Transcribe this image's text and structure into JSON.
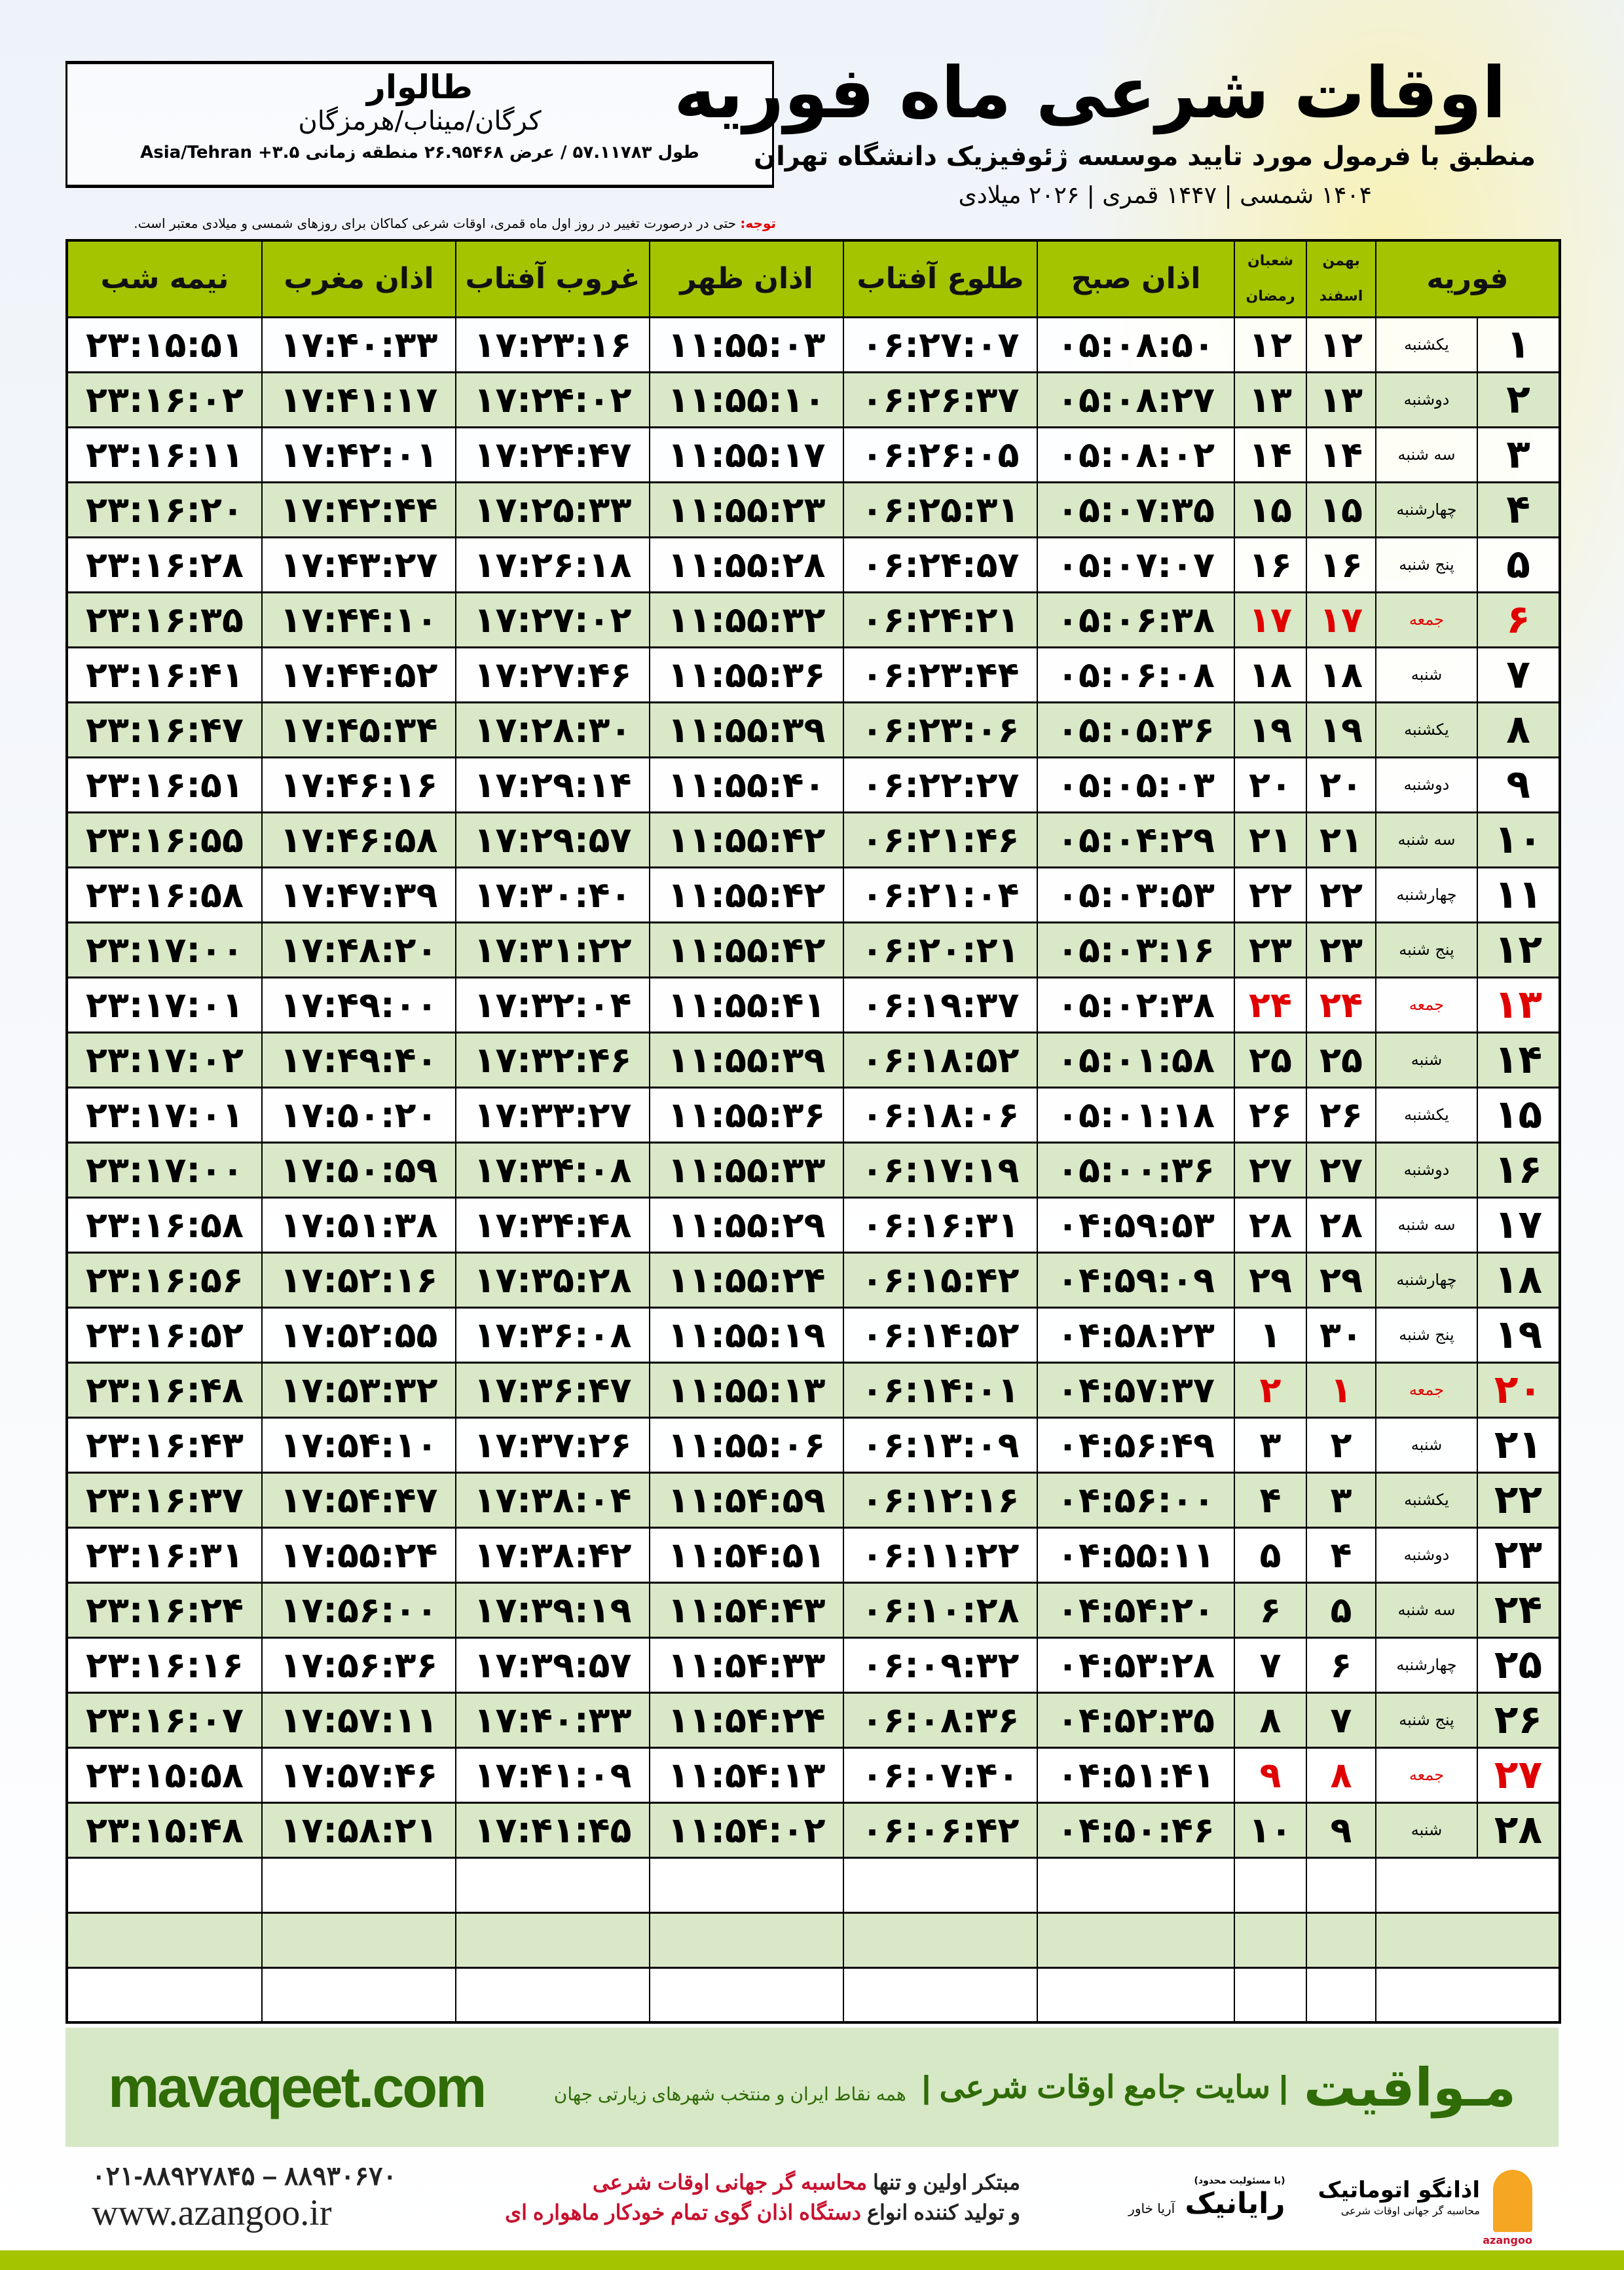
{
  "colors": {
    "header_green": "#a4c400",
    "row_green": "#d9e8c6",
    "friday_red": "#e00000",
    "brand_green": "#2f6b06"
  },
  "info": {
    "city": "طالوار",
    "region": "کرگان/میناب/هرمزگان",
    "coords": "طول ۵۷.۱۱۷۸۳ / عرض ۲۶.۹۵۴۶۸ منطقه زمانی ۳.۵+ Asia/Tehran"
  },
  "header": {
    "title": "اوقات شرعی ماه فوریه",
    "subtitle": "منطبق با فرمول مورد تایید موسسه ژئوفیزیک دانشگاه تهران",
    "dates": "۱۴۰۴ شمسی | ۱۴۴۷ قمری | ۲۰۲۶ میلادی"
  },
  "note": {
    "label": "توجه:",
    "text": " حتی در درصورت تغییر در روز اول ماه قمری، اوقات شرعی کماکان برای روزهای شمسی و میلادی معتبر است."
  },
  "table": {
    "columns": {
      "month": "فوریه",
      "solar_top": "بهمن",
      "solar_bottom": "اسفند",
      "lunar_top": "شعبان",
      "lunar_bottom": "رمضان",
      "fajr": "اذان صبح",
      "sunrise": "طلوع آفتاب",
      "dhuhr": "اذان ظهر",
      "sunset": "غروب آفتاب",
      "maghrib": "اذان مغرب",
      "midnight": "نیمه شب"
    },
    "rows": [
      [
        "۱",
        "یکشنبه",
        "۱۲",
        "۱۲",
        "۰۵:۰۸:۵۰",
        "۰۶:۲۷:۰۷",
        "۱۱:۵۵:۰۳",
        "۱۷:۲۳:۱۶",
        "۱۷:۴۰:۳۳",
        "۲۳:۱۵:۵۱"
      ],
      [
        "۲",
        "دوشنبه",
        "۱۳",
        "۱۳",
        "۰۵:۰۸:۲۷",
        "۰۶:۲۶:۳۷",
        "۱۱:۵۵:۱۰",
        "۱۷:۲۴:۰۲",
        "۱۷:۴۱:۱۷",
        "۲۳:۱۶:۰۲"
      ],
      [
        "۳",
        "سه شنبه",
        "۱۴",
        "۱۴",
        "۰۵:۰۸:۰۲",
        "۰۶:۲۶:۰۵",
        "۱۱:۵۵:۱۷",
        "۱۷:۲۴:۴۷",
        "۱۷:۴۲:۰۱",
        "۲۳:۱۶:۱۱"
      ],
      [
        "۴",
        "چهارشنبه",
        "۱۵",
        "۱۵",
        "۰۵:۰۷:۳۵",
        "۰۶:۲۵:۳۱",
        "۱۱:۵۵:۲۳",
        "۱۷:۲۵:۳۳",
        "۱۷:۴۲:۴۴",
        "۲۳:۱۶:۲۰"
      ],
      [
        "۵",
        "پنج شنبه",
        "۱۶",
        "۱۶",
        "۰۵:۰۷:۰۷",
        "۰۶:۲۴:۵۷",
        "۱۱:۵۵:۲۸",
        "۱۷:۲۶:۱۸",
        "۱۷:۴۳:۲۷",
        "۲۳:۱۶:۲۸"
      ],
      [
        "۶",
        "جمعه",
        "۱۷",
        "۱۷",
        "۰۵:۰۶:۳۸",
        "۰۶:۲۴:۲۱",
        "۱۱:۵۵:۳۲",
        "۱۷:۲۷:۰۲",
        "۱۷:۴۴:۱۰",
        "۲۳:۱۶:۳۵"
      ],
      [
        "۷",
        "شنبه",
        "۱۸",
        "۱۸",
        "۰۵:۰۶:۰۸",
        "۰۶:۲۳:۴۴",
        "۱۱:۵۵:۳۶",
        "۱۷:۲۷:۴۶",
        "۱۷:۴۴:۵۲",
        "۲۳:۱۶:۴۱"
      ],
      [
        "۸",
        "یکشنبه",
        "۱۹",
        "۱۹",
        "۰۵:۰۵:۳۶",
        "۰۶:۲۳:۰۶",
        "۱۱:۵۵:۳۹",
        "۱۷:۲۸:۳۰",
        "۱۷:۴۵:۳۴",
        "۲۳:۱۶:۴۷"
      ],
      [
        "۹",
        "دوشنبه",
        "۲۰",
        "۲۰",
        "۰۵:۰۵:۰۳",
        "۰۶:۲۲:۲۷",
        "۱۱:۵۵:۴۰",
        "۱۷:۲۹:۱۴",
        "۱۷:۴۶:۱۶",
        "۲۳:۱۶:۵۱"
      ],
      [
        "۱۰",
        "سه شنبه",
        "۲۱",
        "۲۱",
        "۰۵:۰۴:۲۹",
        "۰۶:۲۱:۴۶",
        "۱۱:۵۵:۴۲",
        "۱۷:۲۹:۵۷",
        "۱۷:۴۶:۵۸",
        "۲۳:۱۶:۵۵"
      ],
      [
        "۱۱",
        "چهارشنبه",
        "۲۲",
        "۲۲",
        "۰۵:۰۳:۵۳",
        "۰۶:۲۱:۰۴",
        "۱۱:۵۵:۴۲",
        "۱۷:۳۰:۴۰",
        "۱۷:۴۷:۳۹",
        "۲۳:۱۶:۵۸"
      ],
      [
        "۱۲",
        "پنج شنبه",
        "۲۳",
        "۲۳",
        "۰۵:۰۳:۱۶",
        "۰۶:۲۰:۲۱",
        "۱۱:۵۵:۴۲",
        "۱۷:۳۱:۲۲",
        "۱۷:۴۸:۲۰",
        "۲۳:۱۷:۰۰"
      ],
      [
        "۱۳",
        "جمعه",
        "۲۴",
        "۲۴",
        "۰۵:۰۲:۳۸",
        "۰۶:۱۹:۳۷",
        "۱۱:۵۵:۴۱",
        "۱۷:۳۲:۰۴",
        "۱۷:۴۹:۰۰",
        "۲۳:۱۷:۰۱"
      ],
      [
        "۱۴",
        "شنبه",
        "۲۵",
        "۲۵",
        "۰۵:۰۱:۵۸",
        "۰۶:۱۸:۵۲",
        "۱۱:۵۵:۳۹",
        "۱۷:۳۲:۴۶",
        "۱۷:۴۹:۴۰",
        "۲۳:۱۷:۰۲"
      ],
      [
        "۱۵",
        "یکشنبه",
        "۲۶",
        "۲۶",
        "۰۵:۰۱:۱۸",
        "۰۶:۱۸:۰۶",
        "۱۱:۵۵:۳۶",
        "۱۷:۳۳:۲۷",
        "۱۷:۵۰:۲۰",
        "۲۳:۱۷:۰۱"
      ],
      [
        "۱۶",
        "دوشنبه",
        "۲۷",
        "۲۷",
        "۰۵:۰۰:۳۶",
        "۰۶:۱۷:۱۹",
        "۱۱:۵۵:۳۳",
        "۱۷:۳۴:۰۸",
        "۱۷:۵۰:۵۹",
        "۲۳:۱۷:۰۰"
      ],
      [
        "۱۷",
        "سه شنبه",
        "۲۸",
        "۲۸",
        "۰۴:۵۹:۵۳",
        "۰۶:۱۶:۳۱",
        "۱۱:۵۵:۲۹",
        "۱۷:۳۴:۴۸",
        "۱۷:۵۱:۳۸",
        "۲۳:۱۶:۵۸"
      ],
      [
        "۱۸",
        "چهارشنبه",
        "۲۹",
        "۲۹",
        "۰۴:۵۹:۰۹",
        "۰۶:۱۵:۴۲",
        "۱۱:۵۵:۲۴",
        "۱۷:۳۵:۲۸",
        "۱۷:۵۲:۱۶",
        "۲۳:۱۶:۵۶"
      ],
      [
        "۱۹",
        "پنج شنبه",
        "۳۰",
        "۱",
        "۰۴:۵۸:۲۳",
        "۰۶:۱۴:۵۲",
        "۱۱:۵۵:۱۹",
        "۱۷:۳۶:۰۸",
        "۱۷:۵۲:۵۵",
        "۲۳:۱۶:۵۲"
      ],
      [
        "۲۰",
        "جمعه",
        "۱",
        "۲",
        "۰۴:۵۷:۳۷",
        "۰۶:۱۴:۰۱",
        "۱۱:۵۵:۱۳",
        "۱۷:۳۶:۴۷",
        "۱۷:۵۳:۳۲",
        "۲۳:۱۶:۴۸"
      ],
      [
        "۲۱",
        "شنبه",
        "۲",
        "۳",
        "۰۴:۵۶:۴۹",
        "۰۶:۱۳:۰۹",
        "۱۱:۵۵:۰۶",
        "۱۷:۳۷:۲۶",
        "۱۷:۵۴:۱۰",
        "۲۳:۱۶:۴۳"
      ],
      [
        "۲۲",
        "یکشنبه",
        "۳",
        "۴",
        "۰۴:۵۶:۰۰",
        "۰۶:۱۲:۱۶",
        "۱۱:۵۴:۵۹",
        "۱۷:۳۸:۰۴",
        "۱۷:۵۴:۴۷",
        "۲۳:۱۶:۳۷"
      ],
      [
        "۲۳",
        "دوشنبه",
        "۴",
        "۵",
        "۰۴:۵۵:۱۱",
        "۰۶:۱۱:۲۲",
        "۱۱:۵۴:۵۱",
        "۱۷:۳۸:۴۲",
        "۱۷:۵۵:۲۴",
        "۲۳:۱۶:۳۱"
      ],
      [
        "۲۴",
        "سه شنبه",
        "۵",
        "۶",
        "۰۴:۵۴:۲۰",
        "۰۶:۱۰:۲۸",
        "۱۱:۵۴:۴۳",
        "۱۷:۳۹:۱۹",
        "۱۷:۵۶:۰۰",
        "۲۳:۱۶:۲۴"
      ],
      [
        "۲۵",
        "چهارشنبه",
        "۶",
        "۷",
        "۰۴:۵۳:۲۸",
        "۰۶:۰۹:۳۲",
        "۱۱:۵۴:۳۳",
        "۱۷:۳۹:۵۷",
        "۱۷:۵۶:۳۶",
        "۲۳:۱۶:۱۶"
      ],
      [
        "۲۶",
        "پنج شنبه",
        "۷",
        "۸",
        "۰۴:۵۲:۳۵",
        "۰۶:۰۸:۳۶",
        "۱۱:۵۴:۲۴",
        "۱۷:۴۰:۳۳",
        "۱۷:۵۷:۱۱",
        "۲۳:۱۶:۰۷"
      ],
      [
        "۲۷",
        "جمعه",
        "۸",
        "۹",
        "۰۴:۵۱:۴۱",
        "۰۶:۰۷:۴۰",
        "۱۱:۵۴:۱۳",
        "۱۷:۴۱:۰۹",
        "۱۷:۵۷:۴۶",
        "۲۳:۱۵:۵۸"
      ],
      [
        "۲۸",
        "شنبه",
        "۹",
        "۱۰",
        "۰۴:۵۰:۴۶",
        "۰۶:۰۶:۴۲",
        "۱۱:۵۴:۰۲",
        "۱۷:۴۱:۴۵",
        "۱۷:۵۸:۲۱",
        "۲۳:۱۵:۴۸"
      ]
    ],
    "friday_label": "جمعه"
  },
  "banner": {
    "site": "mavaqeet.com",
    "brand": "مـواقیت",
    "slogan": "| سایت جامع اوقات شرعی |",
    "slogan2": "همه نقاط ایران و منتخب شهرهای زیارتی جهان"
  },
  "footer": {
    "phone": "۰۲۱-۸۸۹۲۷۸۴۵ – ۸۸۹۳۰۶۷۰",
    "website": "www.azangoo.ir",
    "line1_a": "مبتکر اولین و تنها ",
    "line1_b": "محاسبه گر جهانی اوقات شرعی",
    "line2_a": "و تولید کننده انواع ",
    "line2_b": "دستگاه اذان گوی تمام خودکار ماهواره ای",
    "logo1_name": "اذانگو اتوماتیک",
    "logo1_sub": "محاسبه گر جهانی اوقات شرعی",
    "logo1_en": "azangoo",
    "logo2_top": "(با مسئولیت محدود)",
    "logo2_name": "رایانیک",
    "logo2_side": "آریا خاور"
  }
}
